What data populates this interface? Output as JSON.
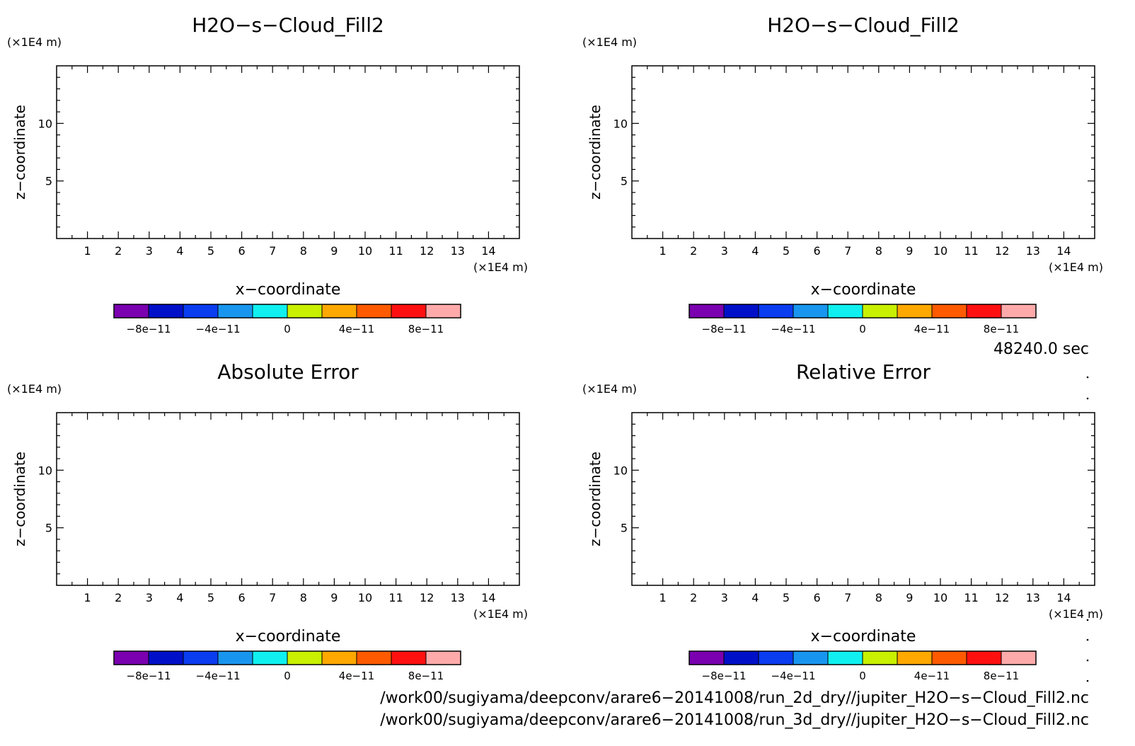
{
  "chart_data": [
    {
      "type": "heatmap",
      "title": "H2O−s−Cloud_Fill2",
      "xlabel": "x−coordinate",
      "ylabel": "z−coordinate",
      "x_unit": "(×1E4 m)",
      "y_unit": "(×1E4 m)",
      "xlim": [
        0,
        15
      ],
      "ylim": [
        0,
        15
      ],
      "x_ticks": [
        "1",
        "2",
        "3",
        "4",
        "5",
        "6",
        "7",
        "8",
        "9",
        "10",
        "11",
        "12",
        "13",
        "14"
      ],
      "y_ticks": [
        "5",
        "10"
      ],
      "values": [],
      "colorbar": {
        "min": -1e-10,
        "max": 1e-10,
        "step": 2e-11,
        "colors": [
          "#7a00b0",
          "#0010c8",
          "#0a3cf0",
          "#1896ef",
          "#10f0f0",
          "#c8f000",
          "#ffa800",
          "#ff5a00",
          "#ff1010",
          "#ffaaaa"
        ],
        "tick_labels": [
          "−8e−11",
          "−4e−11",
          "0",
          "4e−11",
          "8e−11"
        ],
        "tick_values": [
          -8e-11,
          -4e-11,
          0,
          4e-11,
          8e-11
        ]
      }
    },
    {
      "type": "heatmap",
      "title": "H2O−s−Cloud_Fill2",
      "xlabel": "x−coordinate",
      "ylabel": "z−coordinate",
      "x_unit": "(×1E4 m)",
      "y_unit": "(×1E4 m)",
      "xlim": [
        0,
        15
      ],
      "ylim": [
        0,
        15
      ],
      "x_ticks": [
        "1",
        "2",
        "3",
        "4",
        "5",
        "6",
        "7",
        "8",
        "9",
        "10",
        "11",
        "12",
        "13",
        "14"
      ],
      "y_ticks": [
        "5",
        "10"
      ],
      "values": [],
      "colorbar": {
        "min": -1e-10,
        "max": 1e-10,
        "step": 2e-11,
        "colors": [
          "#7a00b0",
          "#0010c8",
          "#0a3cf0",
          "#1896ef",
          "#10f0f0",
          "#c8f000",
          "#ffa800",
          "#ff5a00",
          "#ff1010",
          "#ffaaaa"
        ],
        "tick_labels": [
          "−8e−11",
          "−4e−11",
          "0",
          "4e−11",
          "8e−11"
        ],
        "tick_values": [
          -8e-11,
          -4e-11,
          0,
          4e-11,
          8e-11
        ]
      }
    },
    {
      "type": "heatmap",
      "title": "Absolute Error",
      "xlabel": "x−coordinate",
      "ylabel": "z−coordinate",
      "x_unit": "(×1E4 m)",
      "y_unit": "(×1E4 m)",
      "xlim": [
        0,
        15
      ],
      "ylim": [
        0,
        15
      ],
      "x_ticks": [
        "1",
        "2",
        "3",
        "4",
        "5",
        "6",
        "7",
        "8",
        "9",
        "10",
        "11",
        "12",
        "13",
        "14"
      ],
      "y_ticks": [
        "5",
        "10"
      ],
      "values": [],
      "colorbar": {
        "min": -1e-10,
        "max": 1e-10,
        "step": 2e-11,
        "colors": [
          "#7a00b0",
          "#0010c8",
          "#0a3cf0",
          "#1896ef",
          "#10f0f0",
          "#c8f000",
          "#ffa800",
          "#ff5a00",
          "#ff1010",
          "#ffaaaa"
        ],
        "tick_labels": [
          "−8e−11",
          "−4e−11",
          "0",
          "4e−11",
          "8e−11"
        ],
        "tick_values": [
          -8e-11,
          -4e-11,
          0,
          4e-11,
          8e-11
        ]
      }
    },
    {
      "type": "heatmap",
      "title": "Relative Error",
      "xlabel": "x−coordinate",
      "ylabel": "z−coordinate",
      "x_unit": "(×1E4 m)",
      "y_unit": "(×1E4 m)",
      "xlim": [
        0,
        15
      ],
      "ylim": [
        0,
        15
      ],
      "x_ticks": [
        "1",
        "2",
        "3",
        "4",
        "5",
        "6",
        "7",
        "8",
        "9",
        "10",
        "11",
        "12",
        "13",
        "14"
      ],
      "y_ticks": [
        "5",
        "10"
      ],
      "values": [],
      "colorbar": {
        "min": -1e-10,
        "max": 1e-10,
        "step": 2e-11,
        "colors": [
          "#7a00b0",
          "#0010c8",
          "#0a3cf0",
          "#1896ef",
          "#10f0f0",
          "#c8f000",
          "#ffa800",
          "#ff5a00",
          "#ff1010",
          "#ffaaaa"
        ],
        "tick_labels": [
          "−8e−11",
          "−4e−11",
          "0",
          "4e−11",
          "8e−11"
        ],
        "tick_values": [
          -8e-11,
          -4e-11,
          0,
          4e-11,
          8e-11
        ]
      }
    }
  ],
  "time_label": "48240.0 sec",
  "files": [
    "/work00/sugiyama/deepconv/arare6−20141008/run_2d_dry//jupiter_H2O−s−Cloud_Fill2.nc",
    "/work00/sugiyama/deepconv/arare6−20141008/run_3d_dry//jupiter_H2O−s−Cloud_Fill2.nc"
  ]
}
